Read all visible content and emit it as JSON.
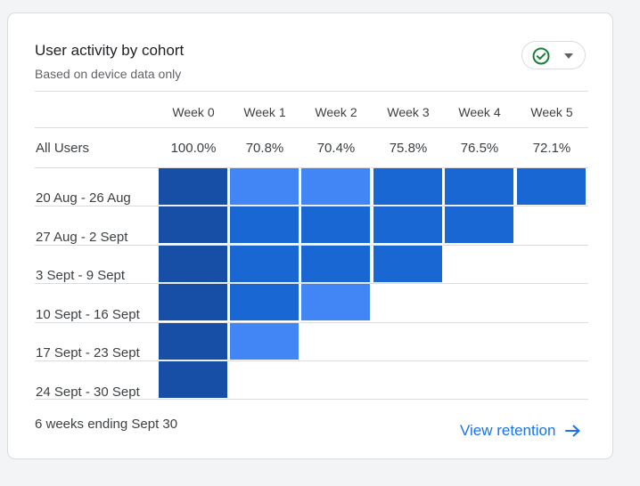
{
  "card": {
    "title": "User activity by cohort",
    "subtitle": "Based on device data only",
    "footer": "6 weeks ending Sept 30",
    "link_label": "View retention"
  },
  "status_icon": "check-circle-icon",
  "menu_icon": "caret-down-icon",
  "link_icon": "arrow-right-icon",
  "colors": {
    "accent": "#1a73e8",
    "check": "#188038",
    "level_dark": "#174ea6",
    "level_mid": "#1967d2",
    "level_light": "#4285f4"
  },
  "chart_data": {
    "type": "heatmap",
    "columns": [
      "Week 0",
      "Week 1",
      "Week 2",
      "Week 3",
      "Week 4",
      "Week 5"
    ],
    "overall_label": "All Users",
    "overall_values": [
      "100.0%",
      "70.8%",
      "70.4%",
      "75.8%",
      "76.5%",
      "72.1%"
    ],
    "rows": [
      {
        "label": "20 Aug - 26 Aug",
        "levels": [
          3,
          1,
          1,
          2,
          2,
          2
        ]
      },
      {
        "label": "27 Aug - 2 Sept",
        "levels": [
          3,
          2,
          2,
          2,
          2
        ]
      },
      {
        "label": "3 Sept - 9 Sept",
        "levels": [
          3,
          2,
          2,
          2
        ]
      },
      {
        "label": "10 Sept - 16 Sept",
        "levels": [
          3,
          2,
          1
        ]
      },
      {
        "label": "17 Sept - 23 Sept",
        "levels": [
          3,
          1
        ]
      },
      {
        "label": "24 Sept - 30 Sept",
        "levels": [
          3
        ]
      }
    ]
  }
}
